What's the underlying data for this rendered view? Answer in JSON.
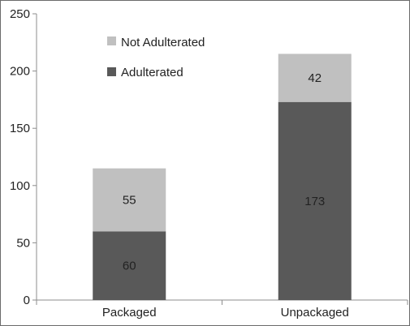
{
  "chart_data": {
    "type": "bar",
    "stacked": true,
    "categories": [
      "Packaged",
      "Unpackaged"
    ],
    "series": [
      {
        "name": "Adulterated",
        "values": [
          60,
          173
        ],
        "color": "#595959"
      },
      {
        "name": "Not Adulterated",
        "values": [
          55,
          42
        ],
        "color": "#c0c0c0"
      }
    ],
    "ylim": [
      0,
      250
    ],
    "yticks": [
      0,
      50,
      100,
      150,
      200,
      250
    ],
    "grid": false,
    "legend": {
      "placement": "top-left",
      "entries": [
        "Not Adulterated",
        "Adulterated"
      ]
    }
  }
}
